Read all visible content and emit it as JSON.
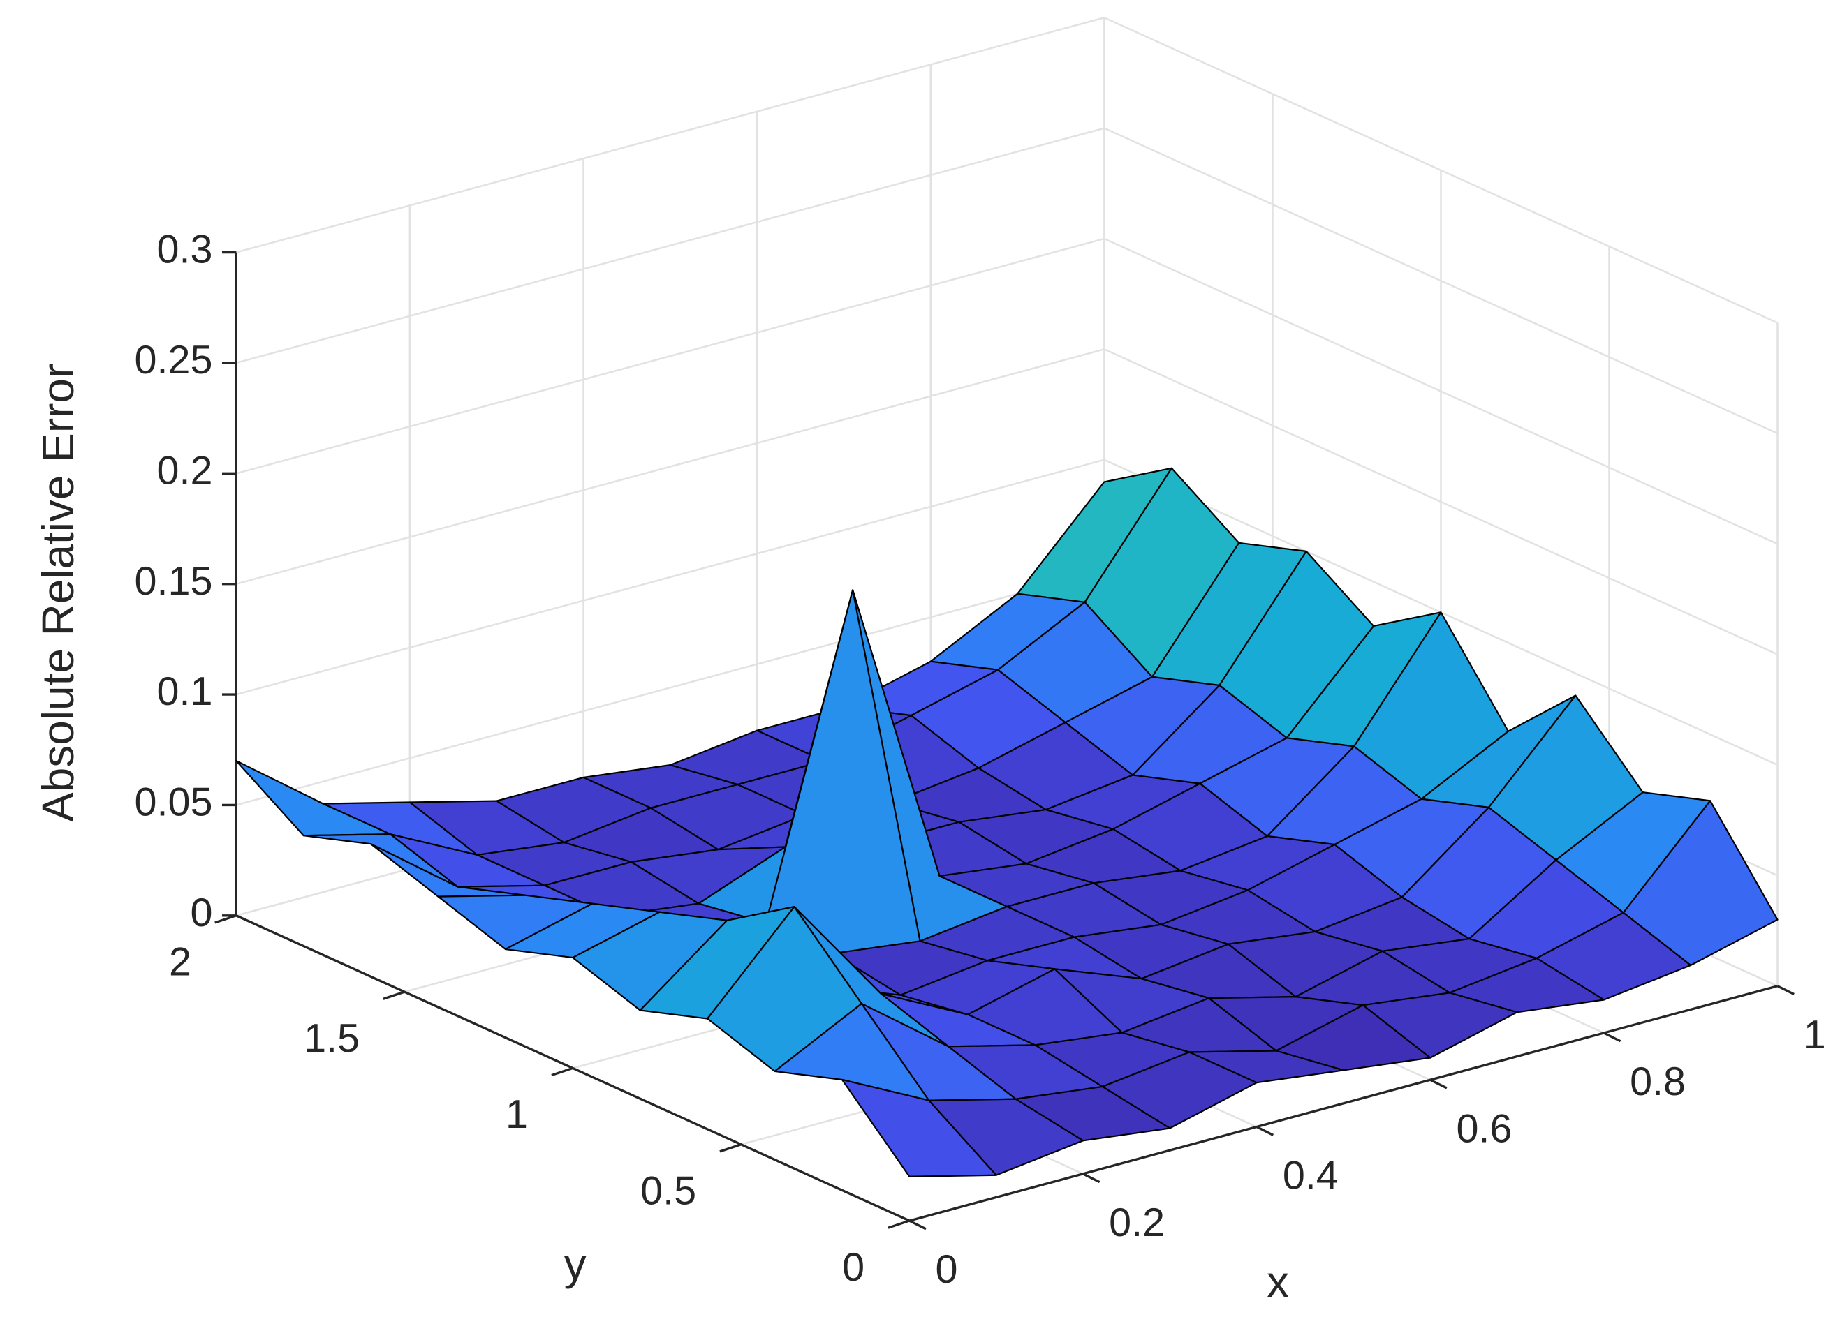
{
  "chart_data": {
    "type": "surface",
    "xlabel": "x",
    "ylabel": "y",
    "zlabel": "Absolute Relative Error",
    "x": [
      0,
      0.1,
      0.2,
      0.3,
      0.4,
      0.5,
      0.6,
      0.7,
      0.8,
      0.9,
      1
    ],
    "y": [
      0,
      0.2,
      0.4,
      0.6,
      0.8,
      1,
      1.2,
      1.4,
      1.6,
      1.8,
      2
    ],
    "z": [
      [
        0.02,
        0.01,
        0.015,
        0.01,
        0.02,
        0.015,
        0.01,
        0.02,
        0.015,
        0.02,
        0.03
      ],
      [
        0.05,
        0.03,
        0.02,
        0.015,
        0.02,
        0.01,
        0.02,
        0.015,
        0.02,
        0.03,
        0.07
      ],
      [
        0.04,
        0.06,
        0.03,
        0.02,
        0.015,
        0.02,
        0.01,
        0.02,
        0.015,
        0.04,
        0.06
      ],
      [
        0.05,
        0.09,
        0.04,
        0.02,
        0.03,
        0.015,
        0.02,
        0.015,
        0.02,
        0.05,
        0.09
      ],
      [
        0.04,
        0.07,
        0.03,
        0.015,
        0.02,
        0.02,
        0.015,
        0.02,
        0.03,
        0.04,
        0.06
      ],
      [
        0.05,
        0.06,
        0.04,
        0.02,
        0.015,
        0.02,
        0.02,
        0.015,
        0.02,
        0.05,
        0.1
      ],
      [
        0.04,
        0.05,
        0.03,
        0.02,
        0.16,
        0.02,
        0.015,
        0.02,
        0.03,
        0.04,
        0.08
      ],
      [
        0.05,
        0.04,
        0.02,
        0.015,
        0.03,
        0.02,
        0.02,
        0.015,
        0.02,
        0.05,
        0.1
      ],
      [
        0.06,
        0.03,
        0.02,
        0.02,
        0.015,
        0.02,
        0.015,
        0.02,
        0.03,
        0.04,
        0.09
      ],
      [
        0.05,
        0.04,
        0.02,
        0.015,
        0.02,
        0.02,
        0.02,
        0.03,
        0.04,
        0.06,
        0.11
      ],
      [
        0.07,
        0.04,
        0.03,
        0.02,
        0.02,
        0.015,
        0.02,
        0.02,
        0.03,
        0.05,
        0.09
      ]
    ],
    "xlim": [
      0,
      1
    ],
    "ylim": [
      0,
      2
    ],
    "zlim": [
      0,
      0.3
    ],
    "xticks": [
      0,
      0.2,
      0.4,
      0.6,
      0.8,
      1
    ],
    "yticks": [
      0,
      0.5,
      1,
      1.5,
      2
    ],
    "zticks": [
      0,
      0.05,
      0.1,
      0.15,
      0.2,
      0.25,
      0.3
    ],
    "grid": true,
    "edge_color": "#000000",
    "colormap": [
      "#3e26a8",
      "#4352ee",
      "#2d84f6",
      "#17a9d8",
      "#2bc0b3",
      "#7fc97e",
      "#d2bb4a",
      "#fdbd3c",
      "#f9fb15"
    ]
  }
}
